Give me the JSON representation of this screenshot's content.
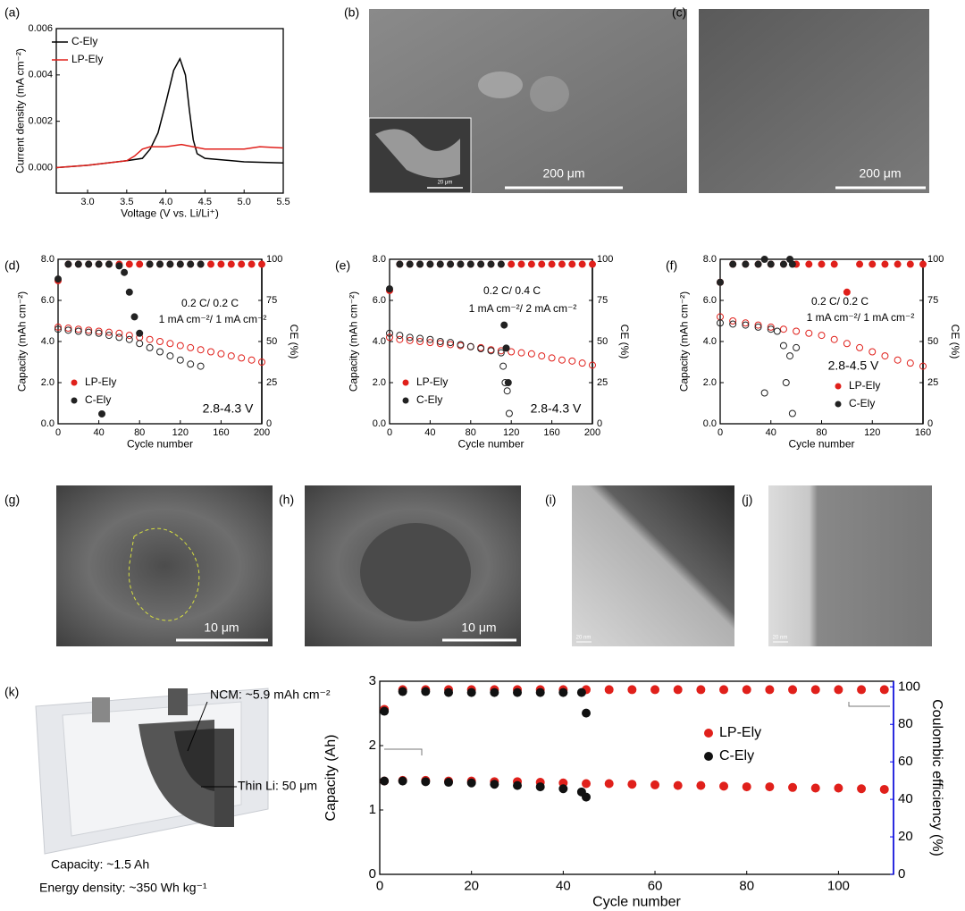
{
  "panel_labels": [
    "(a)",
    "(b)",
    "(c)",
    "(d)",
    "(e)",
    "(f)",
    "(g)",
    "(h)",
    "(i)",
    "(j)",
    "(k)"
  ],
  "images": [
    {
      "scale_bar": "200 μm",
      "inset_scale_bar": "20 μm"
    },
    {
      "scale_bar": "200 μm"
    },
    {
      "scale_bar": "10 μm"
    },
    {
      "scale_bar": "10 μm"
    },
    {
      "scale_bar": "20 nm"
    },
    {
      "scale_bar": "20 nm"
    }
  ],
  "cell": {
    "ncm": "NCM: ~5.9 mAh cm⁻²",
    "li": "Thin Li: 50 μm",
    "capacity": "Capacity: ~1.5 Ah",
    "energy": "Energy density: ~350 Wh kg⁻¹"
  },
  "chart_data": [
    {
      "type": "line",
      "xlabel": "Voltage (V vs. Li/Li⁺)",
      "ylabel": "Current density (mA cm⁻²)",
      "xlim": [
        2.6,
        5.5
      ],
      "xticks": [
        {
          "value": 3,
          "label": "3.0"
        },
        3.5,
        {
          "value": 4,
          "label": "4.0"
        },
        4.5,
        {
          "value": 5,
          "label": "5.0"
        },
        5.5
      ],
      "ylim": [
        -0.0011,
        0.006
      ],
      "yticks": [
        {
          "value": 0,
          "label": "0.000"
        },
        {
          "value": 0.002,
          "label": "0.002"
        },
        {
          "value": 0.004,
          "label": "0.004"
        },
        {
          "value": 0.006,
          "label": "0.006"
        }
      ],
      "legend": "top-left",
      "series": [
        {
          "name": "C-Ely",
          "color": "#000000",
          "x": [
            2.6,
            3.0,
            3.5,
            3.7,
            3.8,
            3.9,
            4.0,
            4.1,
            4.18,
            4.25,
            4.3,
            4.35,
            4.4,
            4.5,
            5.0,
            5.5
          ],
          "values": [
            0,
            0.0001,
            0.0003,
            0.0004,
            0.0008,
            0.0015,
            0.0028,
            0.0042,
            0.0047,
            0.004,
            0.0025,
            0.0012,
            0.0006,
            0.0004,
            0.00025,
            0.0002
          ]
        },
        {
          "name": "LP-Ely",
          "color": "#e0201b",
          "x": [
            2.6,
            3.0,
            3.5,
            3.6,
            3.7,
            3.8,
            4.0,
            4.2,
            4.5,
            5.0,
            5.2,
            5.5
          ],
          "values": [
            0,
            0.0001,
            0.0003,
            0.0005,
            0.0008,
            0.0009,
            0.0009,
            0.001,
            0.0008,
            0.0008,
            0.0009,
            0.00085
          ]
        }
      ]
    },
    {
      "type": "scatter",
      "xlabel": "Cycle number",
      "ylabel": "Capacity (mAh cm⁻²)",
      "y2label": "CE (%)",
      "xlim": [
        0,
        200
      ],
      "xticks": [
        0,
        40,
        80,
        120,
        160,
        200
      ],
      "ylim": [
        0,
        8
      ],
      "yticks": [
        {
          "value": 0,
          "label": "0.0"
        },
        {
          "value": 2,
          "label": "2.0"
        },
        {
          "value": 4,
          "label": "4.0"
        },
        {
          "value": 6,
          "label": "6.0"
        },
        {
          "value": 8,
          "label": "8.0"
        }
      ],
      "y2lim": [
        0,
        100
      ],
      "y2ticks": [
        0,
        25,
        50,
        75,
        100
      ],
      "legend": "bottom-left",
      "annotations": [
        {
          "text": "0.2 C/ 0.2 C",
          "color": "#e8900c"
        },
        {
          "text": "1 mA cm⁻²/ 1 mA cm⁻²",
          "color": "#e8900c"
        },
        {
          "text": "2.8-4.3 V",
          "color": "#000000"
        }
      ],
      "series": [
        {
          "name": "LP-Ely",
          "color": "#e0201b",
          "marker": "open",
          "x": [
            0,
            10,
            20,
            30,
            40,
            50,
            60,
            70,
            80,
            90,
            100,
            110,
            120,
            130,
            140,
            150,
            160,
            170,
            180,
            190,
            200
          ],
          "values": [
            4.7,
            4.65,
            4.6,
            4.55,
            4.5,
            4.45,
            4.4,
            4.3,
            4.2,
            4.1,
            4.0,
            3.9,
            3.8,
            3.7,
            3.6,
            3.5,
            3.4,
            3.3,
            3.2,
            3.1,
            3.0
          ]
        },
        {
          "name": "C-Ely",
          "color": "#222222",
          "marker": "open",
          "x": [
            0,
            10,
            20,
            30,
            40,
            50,
            60,
            70,
            80,
            90,
            100,
            110,
            120,
            130,
            140
          ],
          "values": [
            4.6,
            4.55,
            4.5,
            4.45,
            4.4,
            4.3,
            4.2,
            4.1,
            3.9,
            3.7,
            3.5,
            3.3,
            3.1,
            2.9,
            2.8
          ]
        },
        {
          "color": "#e0201b",
          "marker": "filled",
          "axis": "y2",
          "x": [
            0,
            10,
            20,
            30,
            40,
            50,
            60,
            70,
            80,
            90,
            100,
            110,
            120,
            130,
            140,
            150,
            160,
            170,
            180,
            190,
            200
          ],
          "values": [
            87,
            97,
            97,
            97,
            97,
            97,
            97,
            97,
            97,
            97,
            97,
            97,
            97,
            97,
            97,
            97,
            97,
            97,
            97,
            97,
            97
          ]
        },
        {
          "color": "#222222",
          "marker": "filled",
          "axis": "y2",
          "x": [
            0,
            10,
            20,
            30,
            40,
            43,
            50,
            60,
            65,
            70,
            75,
            80,
            90,
            100,
            110,
            120,
            130,
            140
          ],
          "values": [
            88,
            97,
            97,
            97,
            97,
            6,
            97,
            96,
            92,
            80,
            65,
            55,
            97,
            97,
            97,
            97,
            97,
            97
          ]
        }
      ]
    },
    {
      "type": "scatter",
      "xlabel": "Cycle number",
      "ylabel": "Capacity (mAh cm⁻²)",
      "y2label": "CE (%)",
      "xlim": [
        0,
        200
      ],
      "xticks": [
        0,
        40,
        80,
        120,
        160,
        200
      ],
      "ylim": [
        0,
        8
      ],
      "yticks": [
        {
          "value": 0,
          "label": "0.0"
        },
        {
          "value": 2,
          "label": "2.0"
        },
        {
          "value": 4,
          "label": "4.0"
        },
        {
          "value": 6,
          "label": "6.0"
        },
        {
          "value": 8,
          "label": "8.0"
        }
      ],
      "y2lim": [
        0,
        100
      ],
      "y2ticks": [
        0,
        25,
        50,
        75,
        100
      ],
      "legend": "bottom-left",
      "annotations": [
        {
          "text": "0.2 C/ 0.4 C",
          "color": "#e8900c"
        },
        {
          "text": "1 mA cm⁻²/ 2 mA cm⁻²",
          "color": "#e8900c"
        },
        {
          "text": "2.8-4.3 V",
          "color": "#000000"
        }
      ],
      "series": [
        {
          "name": "LP-Ely",
          "color": "#e0201b",
          "marker": "open",
          "x": [
            0,
            10,
            20,
            30,
            40,
            50,
            60,
            70,
            80,
            90,
            100,
            110,
            120,
            130,
            140,
            150,
            160,
            170,
            180,
            190,
            200
          ],
          "values": [
            4.2,
            4.1,
            4.05,
            4.0,
            3.95,
            3.9,
            3.85,
            3.8,
            3.75,
            3.7,
            3.6,
            3.55,
            3.5,
            3.45,
            3.4,
            3.3,
            3.2,
            3.1,
            3.05,
            2.95,
            2.85
          ]
        },
        {
          "name": "C-Ely",
          "color": "#222222",
          "marker": "open",
          "x": [
            0,
            10,
            20,
            30,
            40,
            50,
            60,
            70,
            80,
            90,
            100,
            110,
            112,
            114,
            116,
            118
          ],
          "values": [
            4.4,
            4.3,
            4.2,
            4.15,
            4.1,
            4.0,
            3.95,
            3.85,
            3.75,
            3.65,
            3.55,
            3.45,
            2.8,
            2.0,
            1.6,
            0.5
          ]
        },
        {
          "color": "#e0201b",
          "marker": "filled",
          "axis": "y2",
          "x": [
            0,
            10,
            20,
            30,
            40,
            50,
            60,
            70,
            80,
            90,
            100,
            110,
            120,
            130,
            140,
            150,
            160,
            170,
            180,
            190,
            200
          ],
          "values": [
            81,
            97,
            97,
            97,
            97,
            97,
            97,
            97,
            97,
            97,
            97,
            97,
            97,
            97,
            97,
            97,
            97,
            97,
            97,
            97,
            97
          ]
        },
        {
          "color": "#222222",
          "marker": "filled",
          "axis": "y2",
          "x": [
            0,
            10,
            20,
            30,
            40,
            50,
            60,
            70,
            80,
            90,
            100,
            110,
            113,
            115,
            117
          ],
          "values": [
            82,
            97,
            97,
            97,
            97,
            97,
            97,
            97,
            97,
            97,
            97,
            97,
            60,
            46,
            25
          ]
        }
      ]
    },
    {
      "type": "scatter",
      "xlabel": "Cycle number",
      "ylabel": "Capacity (mAh cm⁻²)",
      "y2label": "CE (%)",
      "xlim": [
        0,
        160
      ],
      "xticks": [
        0,
        40,
        80,
        120,
        160
      ],
      "ylim": [
        0,
        8
      ],
      "yticks": [
        {
          "value": 0,
          "label": "0.0"
        },
        {
          "value": 2,
          "label": "2.0"
        },
        {
          "value": 4,
          "label": "4.0"
        },
        {
          "value": 6,
          "label": "6.0"
        },
        {
          "value": 8,
          "label": "8.0"
        }
      ],
      "y2lim": [
        0,
        100
      ],
      "y2ticks": [
        0,
        25,
        50,
        75,
        100
      ],
      "legend": "right",
      "annotations": [
        {
          "text": "0.2 C/ 0.2 C",
          "color": "#e8900c"
        },
        {
          "text": "1 mA cm⁻²/ 1 mA cm⁻²",
          "color": "#e8900c"
        },
        {
          "text": "2.8-4.5 V",
          "color": "#000000"
        }
      ],
      "series": [
        {
          "name": "LP-Ely",
          "color": "#e0201b",
          "marker": "open",
          "x": [
            0,
            10,
            20,
            30,
            40,
            50,
            60,
            70,
            80,
            90,
            100,
            110,
            120,
            130,
            140,
            150,
            160
          ],
          "values": [
            5.2,
            5.0,
            4.9,
            4.8,
            4.7,
            4.6,
            4.5,
            4.4,
            4.3,
            4.1,
            3.9,
            3.7,
            3.5,
            3.3,
            3.1,
            2.95,
            2.8
          ]
        },
        {
          "name": "C-Ely",
          "color": "#222222",
          "marker": "open",
          "x": [
            0,
            10,
            20,
            30,
            35,
            40,
            45,
            50,
            52,
            55,
            57,
            60
          ],
          "values": [
            4.9,
            4.85,
            4.8,
            4.7,
            1.5,
            4.6,
            4.5,
            3.8,
            2.0,
            3.3,
            0.5,
            3.7
          ]
        },
        {
          "color": "#e0201b",
          "marker": "filled",
          "axis": "y2",
          "x": [
            0,
            10,
            20,
            30,
            40,
            50,
            60,
            70,
            80,
            90,
            100,
            110,
            120,
            130,
            140,
            150,
            160
          ],
          "values": [
            86,
            97,
            97,
            97,
            97,
            97,
            97,
            97,
            97,
            97,
            80,
            97,
            97,
            97,
            97,
            97,
            97
          ]
        },
        {
          "color": "#222222",
          "marker": "filled",
          "axis": "y2",
          "x": [
            0,
            10,
            20,
            30,
            35,
            40,
            50,
            55,
            57
          ],
          "values": [
            86,
            97,
            97,
            97,
            100,
            97,
            97,
            100,
            97
          ]
        }
      ]
    },
    {
      "type": "scatter",
      "xlabel": "Cycle number",
      "ylabel": "Capacity (Ah)",
      "y2label": "Coulombic efficiency (%)",
      "y2_axis_color": "#0000ee",
      "xlim": [
        0,
        112
      ],
      "xticks": [
        0,
        20,
        40,
        60,
        80,
        100
      ],
      "ylim": [
        0,
        3
      ],
      "yticks": [
        0,
        1,
        2,
        3
      ],
      "y2lim": [
        0,
        103
      ],
      "y2ticks": [
        0,
        20,
        40,
        60,
        80,
        100
      ],
      "legend": "right",
      "series": [
        {
          "name": "LP-Ely",
          "color": "#e0201b",
          "marker": "filled",
          "x": [
            1,
            5,
            10,
            15,
            20,
            25,
            30,
            35,
            40,
            45,
            50,
            55,
            60,
            65,
            70,
            75,
            80,
            85,
            90,
            95,
            100,
            105,
            110
          ],
          "values": [
            1.45,
            1.46,
            1.46,
            1.45,
            1.45,
            1.44,
            1.44,
            1.43,
            1.42,
            1.41,
            1.41,
            1.4,
            1.39,
            1.38,
            1.38,
            1.37,
            1.36,
            1.36,
            1.35,
            1.34,
            1.34,
            1.33,
            1.32
          ]
        },
        {
          "name": "C-Ely",
          "color": "#111111",
          "marker": "filled",
          "x": [
            1,
            5,
            10,
            15,
            20,
            25,
            30,
            35,
            40,
            44,
            45
          ],
          "values": [
            1.45,
            1.45,
            1.44,
            1.43,
            1.42,
            1.4,
            1.38,
            1.36,
            1.33,
            1.28,
            1.2
          ]
        },
        {
          "color": "#e0201b",
          "marker": "filled",
          "axis": "y2",
          "x": [
            1,
            5,
            10,
            15,
            20,
            25,
            30,
            35,
            40,
            45,
            50,
            55,
            60,
            65,
            70,
            75,
            80,
            85,
            90,
            95,
            100,
            105,
            110
          ],
          "values": [
            88,
            98.5,
            98.5,
            98.5,
            98.5,
            98.5,
            98.5,
            98.5,
            98.5,
            98.5,
            98.5,
            98.5,
            98.5,
            98.5,
            98.5,
            98.5,
            98.5,
            98.5,
            98.5,
            98.5,
            98.5,
            98.5,
            98.5
          ]
        },
        {
          "color": "#111111",
          "marker": "filled",
          "axis": "y2",
          "x": [
            1,
            5,
            10,
            15,
            20,
            25,
            30,
            35,
            40,
            44,
            45
          ],
          "values": [
            87,
            97.5,
            97.5,
            97,
            97,
            97,
            97,
            97,
            97,
            97,
            86
          ]
        }
      ]
    }
  ]
}
